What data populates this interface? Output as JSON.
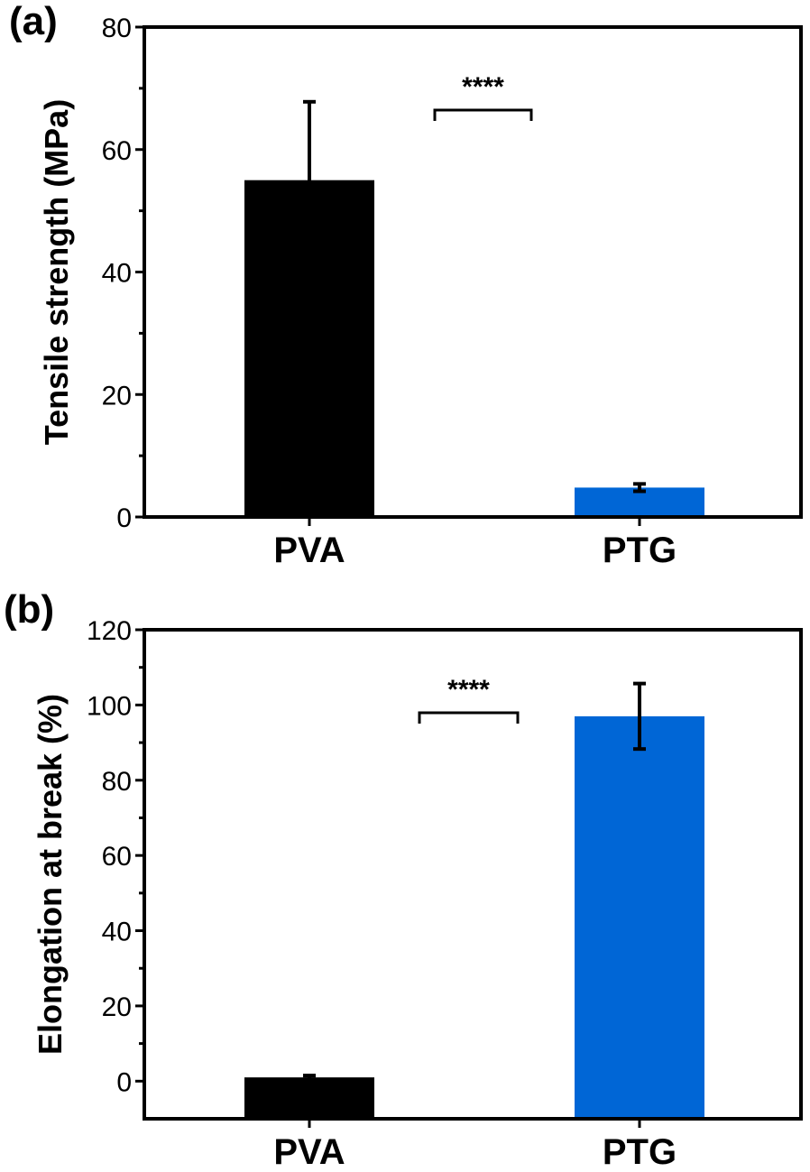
{
  "chart_data": [
    {
      "panel": "(a)",
      "type": "bar",
      "title": "",
      "xlabel": "",
      "ylabel": "Tensile strength (MPa)",
      "categories": [
        "PVA",
        "PTG"
      ],
      "values": [
        55,
        4.8
      ],
      "error": [
        12.8,
        0.6
      ],
      "colors": [
        "#000000",
        "#0066d6"
      ],
      "ylim": [
        0,
        80
      ],
      "yticks": [
        0,
        20,
        40,
        60,
        80
      ],
      "yticks_minor_step": 10,
      "annotation": {
        "text": "****",
        "between": [
          "PVA",
          "PTG"
        ],
        "y": 66
      },
      "grid": false
    },
    {
      "panel": "(b)",
      "type": "bar",
      "title": "",
      "xlabel": "",
      "ylabel": "Elongation at break (%)",
      "categories": [
        "PVA",
        "PTG"
      ],
      "values": [
        1,
        97
      ],
      "error": [
        0.5,
        8.7
      ],
      "colors": [
        "#000000",
        "#0066d6"
      ],
      "ylim": [
        -10,
        120
      ],
      "yticks": [
        0,
        20,
        40,
        60,
        80,
        100,
        120
      ],
      "yticks_minor_step": 10,
      "annotation": {
        "text": "****",
        "between": [
          "PVA",
          "PTG"
        ],
        "y": 97
      },
      "grid": false
    }
  ]
}
